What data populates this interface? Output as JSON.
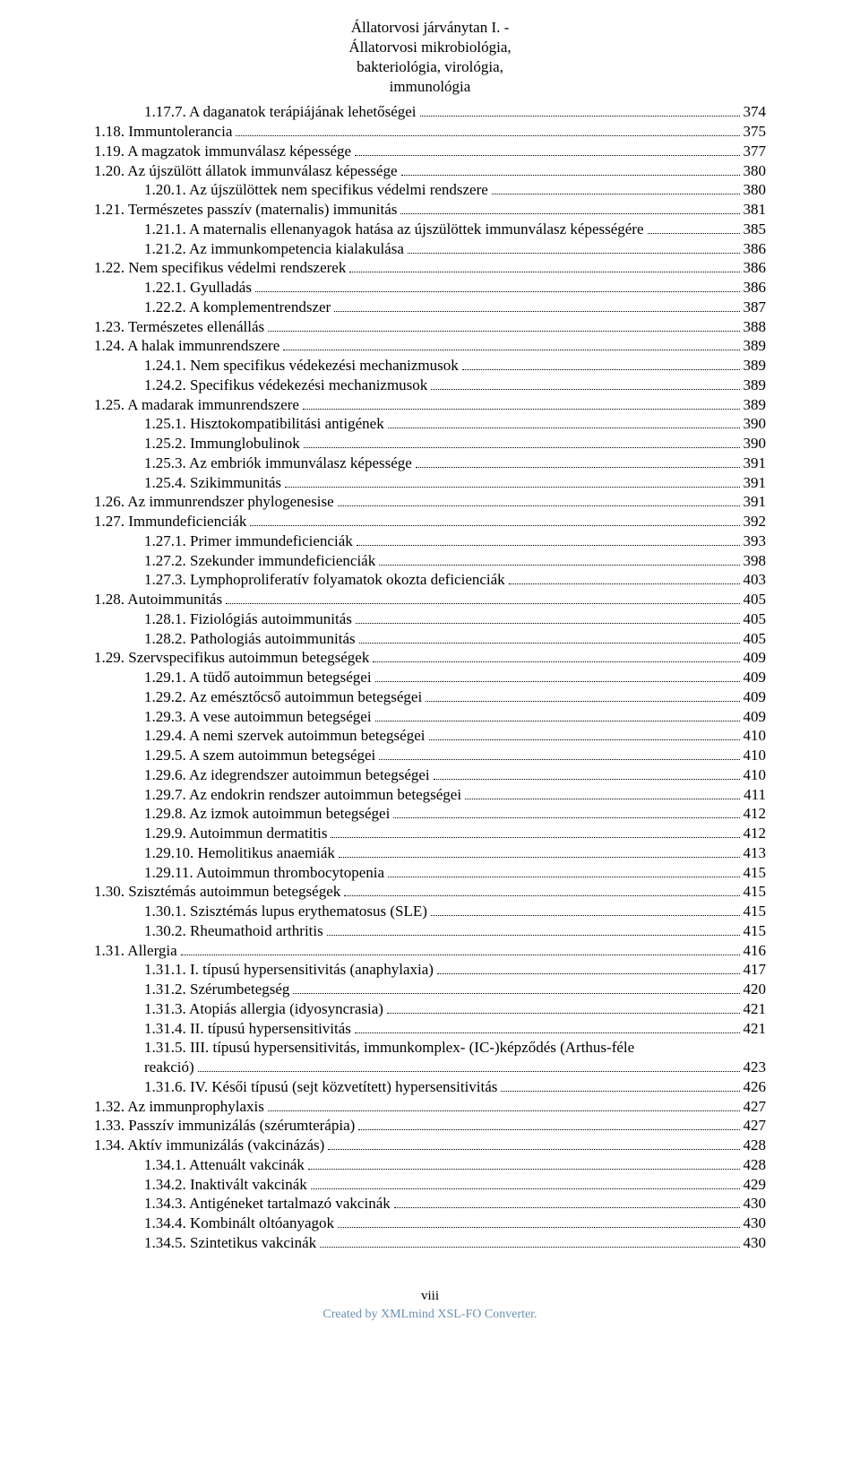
{
  "header": {
    "line1": "Állatorvosi járványtan I. -",
    "line2": "Állatorvosi mikrobiológia,",
    "line3": "bakteriológia, virológia,",
    "line4": "immunológia"
  },
  "toc": [
    {
      "indent": 1,
      "label": "1.17.7. A daganatok terápiájának lehetőségei",
      "page": "374"
    },
    {
      "indent": 0,
      "label": "1.18. Immuntolerancia",
      "page": "375"
    },
    {
      "indent": 0,
      "label": "1.19. A magzatok immunválasz képessége",
      "page": "377"
    },
    {
      "indent": 0,
      "label": "1.20. Az újszülött állatok immunválasz képessége",
      "page": "380"
    },
    {
      "indent": 1,
      "label": "1.20.1. Az újszülöttek nem specifikus védelmi rendszere",
      "page": "380"
    },
    {
      "indent": 0,
      "label": "1.21. Természetes passzív (maternalis) immunitás",
      "page": "381"
    },
    {
      "indent": 1,
      "label": "1.21.1. A maternalis ellenanyagok hatása az újszülöttek immunválasz képességére",
      "page": "385"
    },
    {
      "indent": 1,
      "label": "1.21.2. Az immunkompetencia kialakulása",
      "page": "386"
    },
    {
      "indent": 0,
      "label": "1.22. Nem specifikus védelmi rendszerek",
      "page": "386"
    },
    {
      "indent": 1,
      "label": "1.22.1. Gyulladás",
      "page": "386"
    },
    {
      "indent": 1,
      "label": "1.22.2. A komplementrendszer",
      "page": "387"
    },
    {
      "indent": 0,
      "label": "1.23. Természetes ellenállás",
      "page": "388"
    },
    {
      "indent": 0,
      "label": "1.24. A halak immunrendszere",
      "page": "389"
    },
    {
      "indent": 1,
      "label": "1.24.1. Nem specifikus védekezési mechanizmusok",
      "page": "389"
    },
    {
      "indent": 1,
      "label": "1.24.2. Specifikus védekezési mechanizmusok",
      "page": "389"
    },
    {
      "indent": 0,
      "label": "1.25. A madarak immunrendszere",
      "page": "389"
    },
    {
      "indent": 1,
      "label": "1.25.1. Hisztokompatibilitási antigének",
      "page": "390"
    },
    {
      "indent": 1,
      "label": "1.25.2. Immunglobulinok",
      "page": "390"
    },
    {
      "indent": 1,
      "label": "1.25.3. Az embriók immunválasz képessége",
      "page": "391"
    },
    {
      "indent": 1,
      "label": "1.25.4. Szikimmunitás",
      "page": "391"
    },
    {
      "indent": 0,
      "label": "1.26. Az immunrendszer phylogenesise",
      "page": "391"
    },
    {
      "indent": 0,
      "label": "1.27. Immundeficienciák",
      "page": "392"
    },
    {
      "indent": 1,
      "label": "1.27.1. Primer immundeficienciák",
      "page": "393"
    },
    {
      "indent": 1,
      "label": "1.27.2. Szekunder immundeficienciák",
      "page": "398"
    },
    {
      "indent": 1,
      "label": "1.27.3. Lymphoproliferatív folyamatok okozta deficienciák",
      "page": "403"
    },
    {
      "indent": 0,
      "label": "1.28. Autoimmunitás",
      "page": "405"
    },
    {
      "indent": 1,
      "label": "1.28.1. Fiziológiás autoimmunitás",
      "page": "405"
    },
    {
      "indent": 1,
      "label": "1.28.2. Pathologiás autoimmunitás",
      "page": "405"
    },
    {
      "indent": 0,
      "label": "1.29. Szervspecifikus autoimmun betegségek",
      "page": "409"
    },
    {
      "indent": 1,
      "label": "1.29.1. A tüdő autoimmun betegségei",
      "page": "409"
    },
    {
      "indent": 1,
      "label": "1.29.2. Az emésztőcső autoimmun betegségei",
      "page": "409"
    },
    {
      "indent": 1,
      "label": "1.29.3. A vese autoimmun betegségei",
      "page": "409"
    },
    {
      "indent": 1,
      "label": "1.29.4. A nemi szervek autoimmun betegségei",
      "page": "410"
    },
    {
      "indent": 1,
      "label": "1.29.5. A szem autoimmun betegségei",
      "page": "410"
    },
    {
      "indent": 1,
      "label": "1.29.6. Az idegrendszer autoimmun betegségei",
      "page": "410"
    },
    {
      "indent": 1,
      "label": "1.29.7. Az endokrin rendszer autoimmun betegségei",
      "page": "411"
    },
    {
      "indent": 1,
      "label": "1.29.8. Az izmok autoimmun betegségei",
      "page": "412"
    },
    {
      "indent": 1,
      "label": "1.29.9. Autoimmun dermatitis",
      "page": "412"
    },
    {
      "indent": 1,
      "label": "1.29.10. Hemolitikus anaemiák",
      "page": "413"
    },
    {
      "indent": 1,
      "label": "1.29.11. Autoimmun thrombocytopenia",
      "page": "415"
    },
    {
      "indent": 0,
      "label": "1.30. Szisztémás autoimmun betegségek",
      "page": "415"
    },
    {
      "indent": 1,
      "label": "1.30.1. Szisztémás lupus erythematosus (SLE)",
      "page": "415"
    },
    {
      "indent": 1,
      "label": "1.30.2. Rheumathoid arthritis",
      "page": "415"
    },
    {
      "indent": 0,
      "label": "1.31. Allergia",
      "page": "416"
    },
    {
      "indent": 1,
      "label": "1.31.1. I. típusú hypersensitivitás (anaphylaxia)",
      "page": "417"
    },
    {
      "indent": 1,
      "label": "1.31.2. Szérumbetegség",
      "page": "420"
    },
    {
      "indent": 1,
      "label": "1.31.3. Atopiás allergia (idyosyncrasia)",
      "page": "421"
    },
    {
      "indent": 1,
      "label": "1.31.4. II. típusú hypersensitivitás",
      "page": "421"
    },
    {
      "indent": 1,
      "label": "1.31.5. III. típusú hypersensitivitás, immunkomplex- (IC-)képződés (Arthus-féle",
      "wrap": "reakció)",
      "page": "423"
    },
    {
      "indent": 1,
      "label": "1.31.6. IV. Késői típusú (sejt közvetített) hypersensitivitás",
      "page": "426"
    },
    {
      "indent": 0,
      "label": "1.32. Az immunprophylaxis",
      "page": "427"
    },
    {
      "indent": 0,
      "label": "1.33. Passzív immunizálás (szérumterápia)",
      "page": "427"
    },
    {
      "indent": 0,
      "label": "1.34. Aktív immunizálás (vakcinázás)",
      "page": "428"
    },
    {
      "indent": 1,
      "label": "1.34.1. Attenuált vakcinák",
      "page": "428"
    },
    {
      "indent": 1,
      "label": "1.34.2. Inaktivált vakcinák",
      "page": "429"
    },
    {
      "indent": 1,
      "label": "1.34.3. Antigéneket tartalmazó vakcinák",
      "page": "430"
    },
    {
      "indent": 1,
      "label": "1.34.4. Kombinált oltóanyagok",
      "page": "430"
    },
    {
      "indent": 1,
      "label": "1.34.5. Szintetikus vakcinák",
      "page": "430"
    }
  ],
  "footer": {
    "pagenum": "viii",
    "credit": "Created by XMLmind XSL-FO Converter."
  }
}
